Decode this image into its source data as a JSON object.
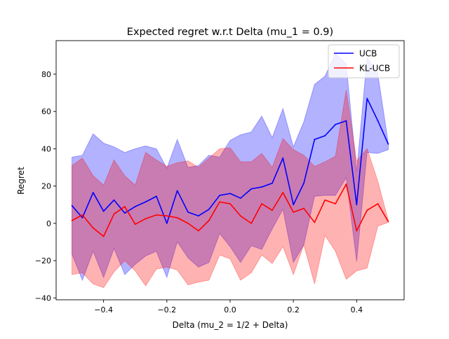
{
  "chart_data": {
    "type": "line",
    "title": "Expected regret w.r.t Delta (mu_1 = 0.9)",
    "xlabel": "Delta (mu_2 = 1/2 + Delta)",
    "ylabel": "Regret",
    "xlim": [
      -0.55,
      0.55
    ],
    "ylim": [
      -41,
      98
    ],
    "xticks": [
      -0.4,
      -0.2,
      0.0,
      0.2,
      0.4
    ],
    "xtick_labels": [
      "−0.4",
      "−0.2",
      "0.0",
      "0.2",
      "0.4"
    ],
    "yticks": [
      -40,
      -20,
      0,
      20,
      40,
      60,
      80
    ],
    "ytick_labels": [
      "−40",
      "−20",
      "0",
      "20",
      "40",
      "60",
      "80"
    ],
    "grid": false,
    "legend_position": "top-right",
    "x": [
      -0.5,
      -0.467,
      -0.433,
      -0.4,
      -0.367,
      -0.333,
      -0.3,
      -0.267,
      -0.233,
      -0.2,
      -0.167,
      -0.133,
      -0.1,
      -0.067,
      -0.033,
      0.0,
      0.033,
      0.067,
      0.1,
      0.133,
      0.167,
      0.2,
      0.233,
      0.267,
      0.3,
      0.333,
      0.367,
      0.4,
      0.433,
      0.467,
      0.5
    ],
    "series": [
      {
        "name": "UCB",
        "color": "#0000ff",
        "band_color": "#0000ff",
        "values": [
          9.5,
          3,
          16.5,
          6.5,
          12.5,
          5.5,
          9,
          11.5,
          14.5,
          0,
          17.5,
          6,
          4,
          7.5,
          15,
          16,
          13.5,
          18.5,
          19.5,
          21.5,
          35,
          10,
          21.5,
          45,
          47,
          53,
          55,
          10,
          67,
          55,
          42.5
        ],
        "upper": [
          35.5,
          36.5,
          48,
          43,
          41,
          38,
          40,
          41.5,
          40,
          29.5,
          45,
          30,
          31,
          36.5,
          35.5,
          44.5,
          47.5,
          49,
          57.5,
          46,
          61.5,
          41,
          54.5,
          74.5,
          79,
          91,
          85.5,
          27.5,
          89,
          80,
          43
        ],
        "lower": [
          -16.5,
          -30.5,
          -15,
          -29,
          -13.5,
          -27.5,
          -22,
          -17.5,
          -15,
          -29,
          -10,
          -18.5,
          -23.5,
          -21,
          -5.5,
          -12.5,
          -21,
          -12,
          -14,
          -3,
          7.5,
          -21,
          -11.5,
          14.5,
          15,
          15,
          24.5,
          -20.5,
          38,
          37.5,
          39.5
        ]
      },
      {
        "name": "KL-UCB",
        "color": "#ff0000",
        "band_color": "#ff0000",
        "values": [
          1.5,
          4.5,
          -2.5,
          -7,
          5,
          9,
          -0.5,
          2.5,
          4.5,
          4,
          3,
          0,
          -4,
          1.5,
          11.5,
          10.5,
          4,
          0,
          10.5,
          7,
          16.5,
          6,
          8,
          0.5,
          12.5,
          10.5,
          21,
          -4,
          7,
          10.5,
          1
        ],
        "upper": [
          31,
          35,
          25.5,
          20.5,
          34,
          25.5,
          20.5,
          38,
          34,
          30.5,
          32.5,
          33.5,
          30,
          35,
          40,
          40.5,
          33,
          33,
          37.5,
          30,
          45.5,
          39.5,
          36.5,
          30.5,
          33,
          36,
          71.5,
          33.5,
          40,
          22.5,
          1.5
        ],
        "lower": [
          -27.5,
          -26.5,
          -32.5,
          -34.5,
          -26,
          -20,
          -25.5,
          -33.5,
          -24.5,
          -23.5,
          -25,
          -33,
          -31.5,
          -30.5,
          -17,
          -19,
          -30.5,
          -26.5,
          -17,
          -21.5,
          -12.5,
          -27.5,
          -11.5,
          -32.5,
          -6.5,
          -15,
          -30,
          -25.5,
          -24,
          -1.5,
          0.5
        ]
      }
    ]
  }
}
